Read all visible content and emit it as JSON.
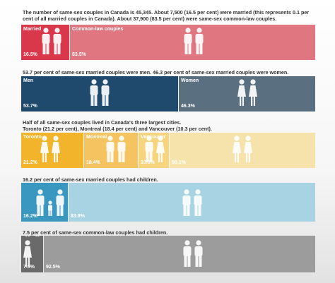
{
  "colors": {
    "married": "#d9384a",
    "common_law": "#e07680",
    "men": "#1f4a6e",
    "women": "#5a7080",
    "toronto": "#f2b42a",
    "montreal": "#f5c460",
    "vancouver": "#f7d47e",
    "other_cities": "#f6e3ab",
    "married_children": "#3a97c0",
    "married_no_children": "#a8d3e3",
    "cl_children": "#6a6a6a",
    "cl_no_children": "#9c9c9c"
  },
  "chart_data": [
    {
      "type": "bar",
      "caption": "The number of same-sex couples in Canada is 45,345. About 7,500 (16.5 per cent) were married (this represents 0.1 per cent of all married couples in Canada). About 37,900 (83.5 per cent) were same-sex common-law couples.",
      "categories": [
        "Married",
        "Common-law couples"
      ],
      "values": [
        16.5,
        83.5
      ],
      "value_labels": [
        "16.5%",
        "83.5%"
      ]
    },
    {
      "type": "bar",
      "caption": "53.7 per cent of same-sex married couples were men. 46.3 per cent of same-sex married couples were women.",
      "categories": [
        "Men",
        "Women"
      ],
      "values": [
        53.7,
        46.3
      ],
      "value_labels": [
        "53.7%",
        "46.3%"
      ]
    },
    {
      "type": "bar",
      "caption_line1": "Half of all same-sex couples lived in Canada's three largest cities.",
      "caption_line2": "Toronto (21.2 per cent), Montreal (18.4 per cent) and Vancouver (10.3 per cent).",
      "categories": [
        "Toronto",
        "Montreal",
        "Vancouver",
        ""
      ],
      "values": [
        21.2,
        18.4,
        10.3,
        50.1
      ],
      "value_labels": [
        "21.2%",
        "18.4%",
        "10.3%",
        "50.1%"
      ]
    },
    {
      "type": "bar",
      "caption": "16.2 per cent of same-sex married couples had children.",
      "categories": [
        "",
        ""
      ],
      "values": [
        16.2,
        83.8
      ],
      "value_labels": [
        "16.2%",
        "83.8%"
      ]
    },
    {
      "type": "bar",
      "caption": "7.5 per cent of same-sex common-law couples had children.",
      "categories": [
        "",
        ""
      ],
      "values": [
        7.5,
        92.5
      ],
      "value_labels": [
        "7.5%",
        "92.5%"
      ]
    }
  ]
}
